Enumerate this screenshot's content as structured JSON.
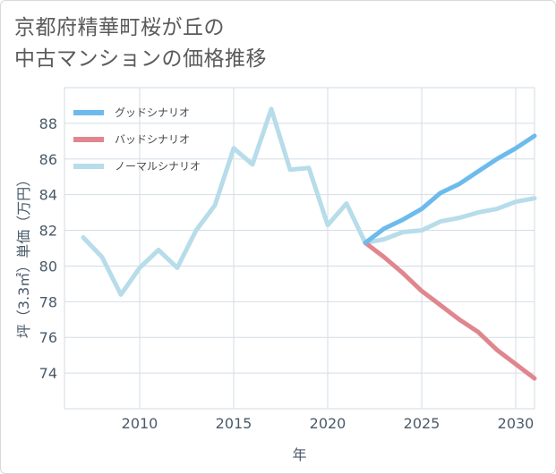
{
  "title_line1": "京都府精華町桜が丘の",
  "title_line2": "中古マンションの価格推移",
  "chart_data": {
    "type": "line",
    "xlabel": "年",
    "ylabel": "坪（3.3㎡）単価（万円）",
    "xlim": [
      2006,
      2031
    ],
    "ylim": [
      72,
      90
    ],
    "xticks": [
      2010,
      2015,
      2020,
      2025,
      2030
    ],
    "yticks": [
      74,
      76,
      78,
      80,
      82,
      84,
      86,
      88
    ],
    "grid": true,
    "legend_position": "top-left",
    "series": [
      {
        "name": "グッドシナリオ",
        "color": "#6cbbec",
        "x": [
          2022,
          2023,
          2024,
          2025,
          2026,
          2027,
          2028,
          2029,
          2030,
          2031
        ],
        "y": [
          81.3,
          82.1,
          82.6,
          83.2,
          84.1,
          84.6,
          85.3,
          86.0,
          86.6,
          87.3
        ]
      },
      {
        "name": "バッドシナリオ",
        "color": "#e0868e",
        "x": [
          2022,
          2023,
          2024,
          2025,
          2026,
          2027,
          2028,
          2029,
          2030,
          2031
        ],
        "y": [
          81.3,
          80.5,
          79.6,
          78.6,
          77.8,
          77.0,
          76.3,
          75.3,
          74.5,
          73.7
        ]
      },
      {
        "name": "ノーマルシナリオ",
        "color": "#b7dcea",
        "x": [
          2007,
          2008,
          2009,
          2010,
          2011,
          2012,
          2013,
          2014,
          2015,
          2016,
          2017,
          2018,
          2019,
          2020,
          2021,
          2022,
          2023,
          2024,
          2025,
          2026,
          2027,
          2028,
          2029,
          2030,
          2031
        ],
        "y": [
          81.6,
          80.5,
          78.4,
          79.9,
          80.9,
          79.9,
          82.0,
          83.4,
          86.6,
          85.7,
          88.8,
          85.4,
          85.5,
          82.3,
          83.5,
          81.3,
          81.5,
          81.9,
          82.0,
          82.5,
          82.7,
          83.0,
          83.2,
          83.6,
          83.8
        ]
      }
    ]
  }
}
